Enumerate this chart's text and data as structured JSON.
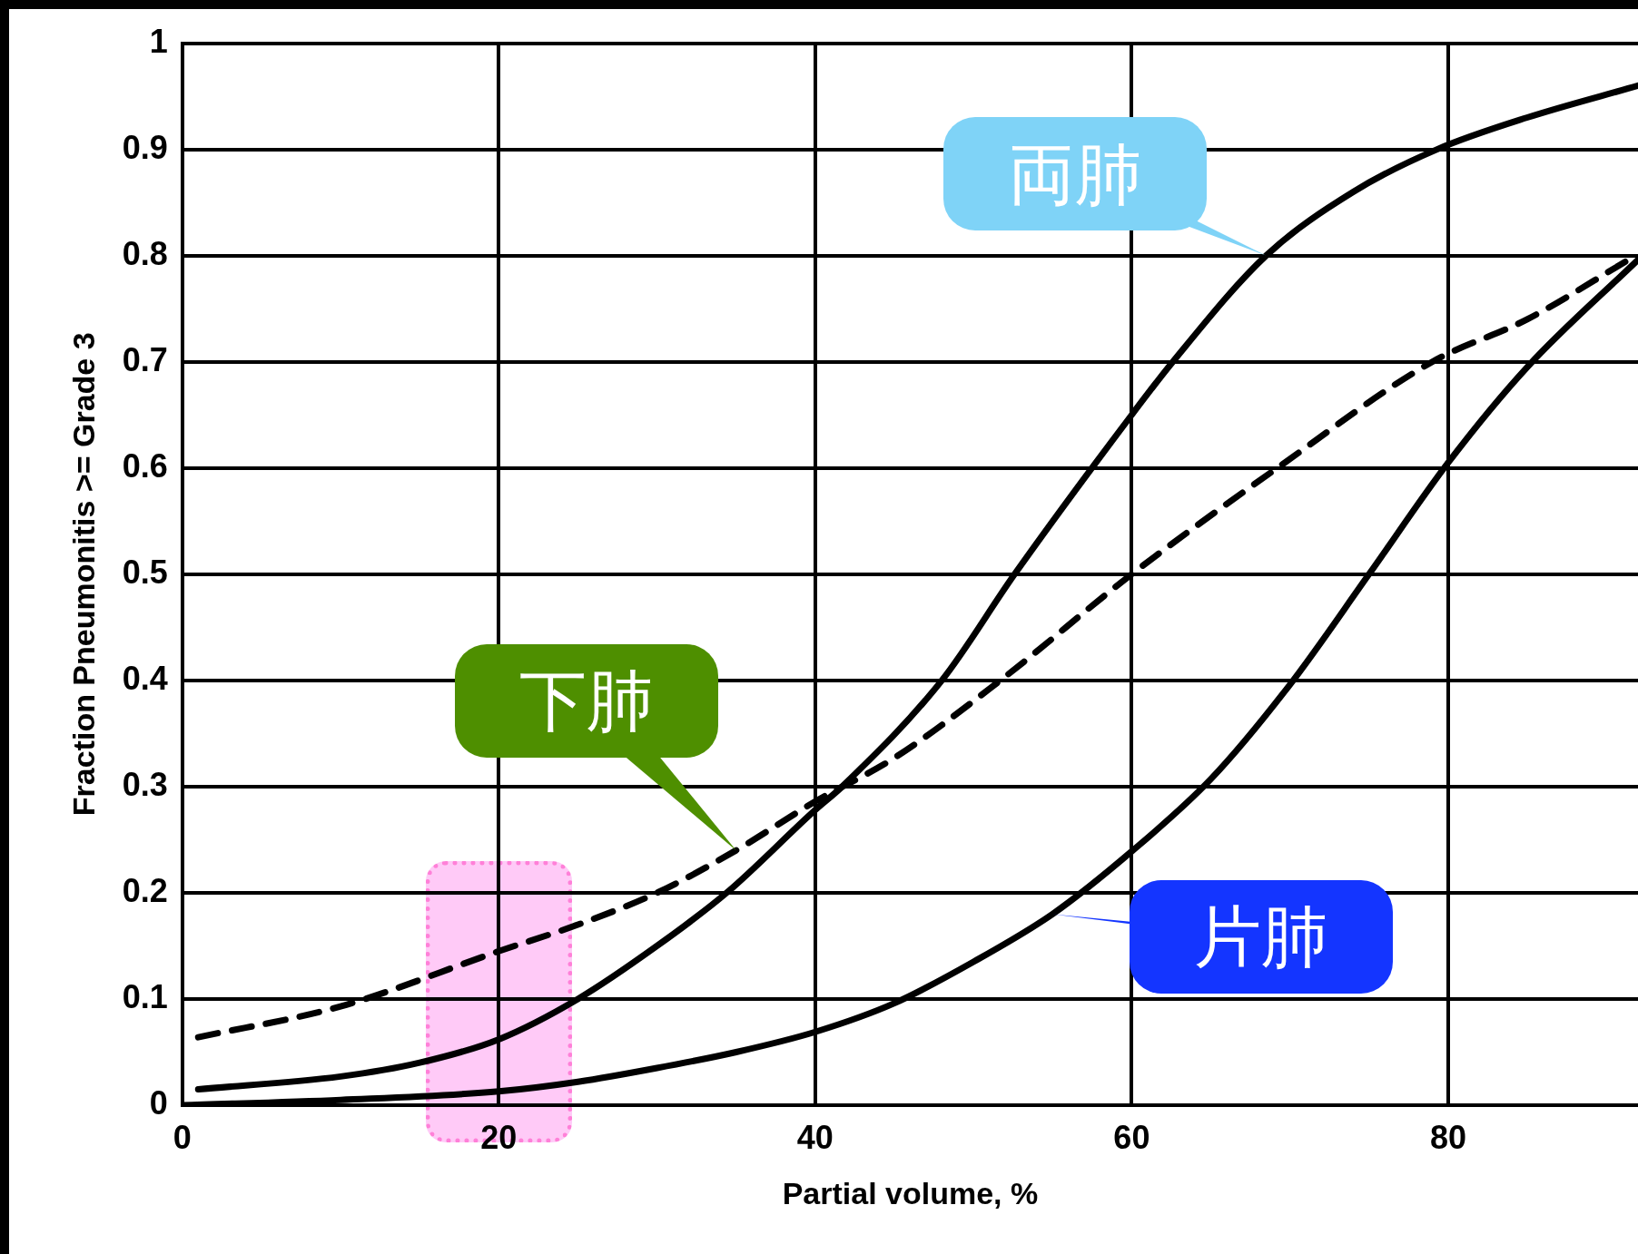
{
  "chart_data": {
    "type": "line",
    "xlabel": "Partial volume, %",
    "ylabel": "Fraction Pneumonitis >= Grade 3",
    "xlim": [
      0,
      92
    ],
    "ylim": [
      0,
      1
    ],
    "xticks": [
      0,
      20,
      40,
      60,
      80
    ],
    "yticks": [
      0,
      0.1,
      0.2,
      0.3,
      0.4,
      0.5,
      0.6,
      0.7,
      0.8,
      0.9,
      1
    ],
    "grid": true,
    "bands": [
      {
        "axis": "x",
        "from": 15.4,
        "to": 24.6,
        "color": "#ff96f0"
      }
    ],
    "legend": false,
    "marker": "none",
    "series": [
      {
        "color": "#000000",
        "line_style": "solid",
        "x": [
          1,
          10,
          15,
          20,
          25,
          30,
          34.4,
          40,
          41.7,
          48,
          52.6,
          60,
          62.6,
          68.5,
          74,
          79.3,
          85,
          92
        ],
        "values": [
          0.015,
          0.027,
          0.04,
          0.062,
          0.1,
          0.15,
          0.2,
          0.278,
          0.3,
          0.4,
          0.5,
          0.65,
          0.7,
          0.8,
          0.86,
          0.9,
          0.93,
          0.96
        ]
      },
      {
        "color": "#000000",
        "line_style": "dashed",
        "x": [
          1,
          10,
          20,
          25,
          30,
          35,
          40,
          45,
          51.7,
          60,
          69.2,
          79,
          85,
          91.4
        ],
        "values": [
          0.064,
          0.093,
          0.145,
          0.17,
          0.2,
          0.24,
          0.286,
          0.327,
          0.4,
          0.5,
          0.6,
          0.7,
          0.74,
          0.796
        ]
      },
      {
        "color": "#000000",
        "line_style": "solid",
        "x": [
          0,
          10,
          20,
          25,
          30,
          35,
          40,
          45,
          50,
          55,
          60,
          65,
          70,
          75,
          80,
          85,
          92
        ],
        "values": [
          0,
          0.005,
          0.013,
          0.022,
          0.035,
          0.05,
          0.069,
          0.096,
          0.135,
          0.18,
          0.239,
          0.307,
          0.396,
          0.5,
          0.605,
          0.695,
          0.796
        ]
      }
    ],
    "annotations": [
      {
        "text": "両肺",
        "x": 68.5,
        "y": 0.8
      },
      {
        "text": "下肺",
        "x": 35,
        "y": 0.24
      },
      {
        "text": "片肺",
        "x": 55,
        "y": 0.18
      }
    ]
  }
}
